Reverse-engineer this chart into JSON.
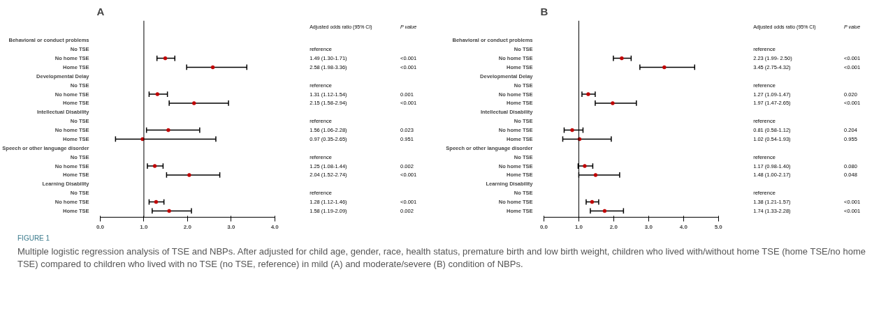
{
  "chart_data": [
    {
      "type": "scatter",
      "title": "A",
      "orientation": "horizontal",
      "marker": "circle",
      "grid": false,
      "color": "#c00000",
      "categories": [
        "Behavioral or conduct problems",
        "No TSE",
        "No home TSE",
        "Home TSE",
        "Developmental Delay",
        "No TSE",
        "No home TSE",
        "Home TSE",
        "Intellectual Disability",
        "No TSE",
        "No home TSE",
        "Home TSE",
        "Speech or other language disorder",
        "No TSE",
        "No home TSE",
        "Home TSE",
        "Learning Disability",
        "No TSE",
        "No home TSE",
        "Home TSE"
      ],
      "values": [
        null,
        null,
        1.49,
        2.58,
        null,
        null,
        1.31,
        2.15,
        null,
        null,
        1.56,
        0.97,
        null,
        null,
        1.25,
        2.04,
        null,
        null,
        1.28,
        1.58
      ],
      "errors": [
        null,
        null,
        [
          1.3,
          1.71
        ],
        [
          1.98,
          3.36
        ],
        null,
        null,
        [
          1.12,
          1.54
        ],
        [
          1.58,
          2.94
        ],
        null,
        null,
        [
          1.06,
          2.28
        ],
        [
          0.35,
          2.65
        ],
        null,
        null,
        [
          1.08,
          1.44
        ],
        [
          1.52,
          2.74
        ],
        null,
        null,
        [
          1.12,
          1.46
        ],
        [
          1.19,
          2.09
        ]
      ],
      "value_labels": [
        null,
        "reference",
        "1.49 (1.30-1.71)",
        "2.58 (1.98-3.36)",
        null,
        "reference",
        "1.31 (1.12-1.54)",
        "2.15 (1.58-2.94)",
        null,
        "reference",
        "1.56 (1.06-2.28)",
        "0.97 (0.35-2.65)",
        null,
        "reference",
        "1.25 (1.08-1.44)",
        "2.04 (1.52-2.74)",
        null,
        "reference",
        "1.28 (1.12-1.46)",
        "1.58 (1.19-2.09)"
      ],
      "xlim": [
        0,
        4
      ],
      "xticks": [
        {
          "value": 0,
          "label": "0.0"
        },
        {
          "value": 1,
          "label": "1.0"
        },
        {
          "value": 2,
          "label": "2.0"
        },
        {
          "value": 3,
          "label": "3.0"
        },
        {
          "value": 4,
          "label": "4.0"
        }
      ],
      "ref_lines": [
        {
          "axis": "x",
          "value": 1,
          "color": "#000000"
        }
      ],
      "annotations": [
        "Adjusted odds ratio (95% CI)",
        "P value",
        "<0.001",
        "<0.001",
        "0.001",
        "<0.001",
        "0.023",
        "0.951",
        "0.002",
        "<0.001",
        "<0.001",
        "0.002"
      ]
    },
    {
      "type": "scatter",
      "title": "B",
      "orientation": "horizontal",
      "marker": "circle",
      "grid": false,
      "color": "#c00000",
      "categories": [
        "Behavioral or conduct problems",
        "No TSE",
        "No home TSE",
        "Home TSE",
        "Developmental Delay",
        "No TSE",
        "No home TSE",
        "Home TSE",
        "Intellectual Disability",
        "No TSE",
        "No home TSE",
        "Home TSE",
        "Speech or other language disorder",
        "No TSE",
        "No home TSE",
        "Home TSE",
        "Learning Disability",
        "No TSE",
        "No home TSE",
        "Home TSE"
      ],
      "values": [
        null,
        null,
        2.23,
        3.45,
        null,
        null,
        1.27,
        1.97,
        null,
        null,
        0.81,
        1.02,
        null,
        null,
        1.17,
        1.48,
        null,
        null,
        1.38,
        1.74
      ],
      "errors": [
        null,
        null,
        [
          1.99,
          2.5
        ],
        [
          2.75,
          4.32
        ],
        null,
        null,
        [
          1.09,
          1.47
        ],
        [
          1.47,
          2.65
        ],
        null,
        null,
        [
          0.58,
          1.12
        ],
        [
          0.54,
          1.93
        ],
        null,
        null,
        [
          0.98,
          1.4
        ],
        [
          1.0,
          2.17
        ],
        null,
        null,
        [
          1.21,
          1.57
        ],
        [
          1.33,
          2.28
        ]
      ],
      "value_labels": [
        null,
        "reference",
        "2.23 (1.99- 2.50)",
        "3.45 (2.75-4.32)",
        null,
        "reference",
        "1.27 (1.09-1.47)",
        "1.97 (1.47-2.65)",
        null,
        "reference",
        "0.81 (0.58-1.12)",
        "1.02 (0.54-1.93)",
        null,
        "reference",
        "1.17 (0.98-1.40)",
        "1.48 (1.00-2.17)",
        null,
        "reference",
        "1.38 (1.21-1.57)",
        "1.74 (1.33-2.28)"
      ],
      "xlim": [
        0,
        5
      ],
      "xticks": [
        {
          "value": 0,
          "label": "0.0"
        },
        {
          "value": 1,
          "label": "1.0"
        },
        {
          "value": 2,
          "label": "2.0"
        },
        {
          "value": 3,
          "label": "3.0"
        },
        {
          "value": 4,
          "label": "4.0"
        },
        {
          "value": 5,
          "label": "5.0"
        }
      ],
      "ref_lines": [
        {
          "axis": "x",
          "value": 1,
          "color": "#000000"
        }
      ],
      "annotations": [
        "Adjusted odds ratio (95% CI)",
        "P value",
        "<0.001",
        "<0.001",
        "0.020",
        "<0.001",
        "0.204",
        "0.955",
        "0.080",
        "0.048",
        "<0.001",
        "<0.001",
        "FIGURE 1",
        "Multiple logistic regression analysis of TSE and NBPs. After adjusted for child age, gender, race, health status, premature birth and low birth weight, children who lived with/without home TSE (home TSE/no home TSE) compared to children who lived with no TSE (no TSE, reference) in mild (A) and moderate/severe (B) condition of NBPs."
      ]
    }
  ]
}
